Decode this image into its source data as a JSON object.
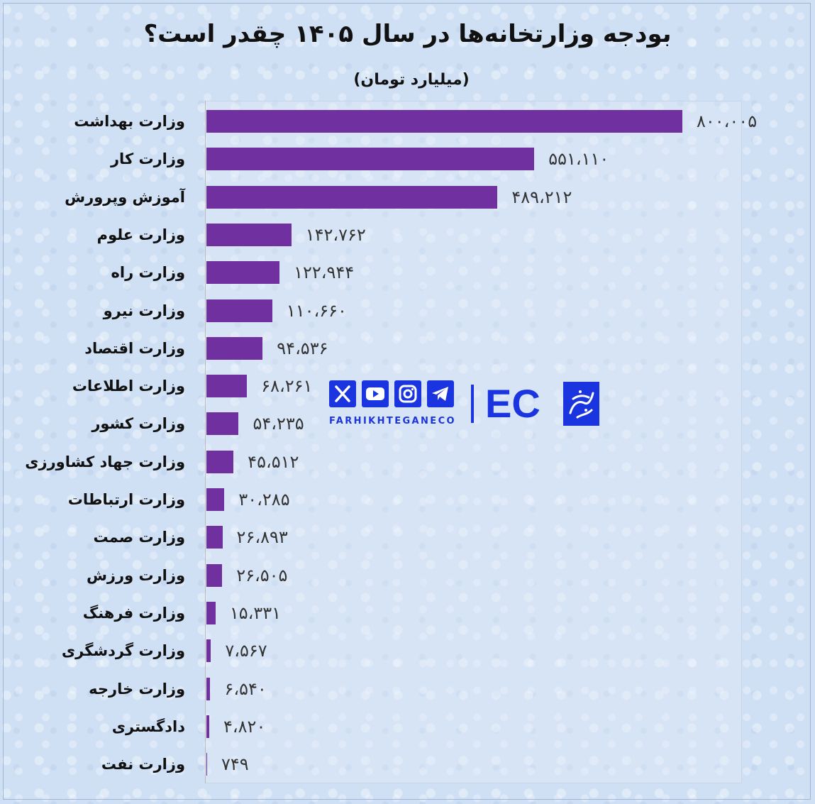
{
  "chart_data": {
    "type": "bar",
    "orientation": "horizontal",
    "title": "بودجه وزارتخانه‌ها در سال ۱۴۰۵ چقدر است؟",
    "subtitle": "(میلیارد تومان)",
    "categories": [
      "وزارت بهداشت",
      "وزارت کار",
      "آموزش وپرورش",
      "وزارت علوم",
      "وزارت راه",
      "وزارت نیرو",
      "وزارت اقتصاد",
      "وزارت اطلاعات",
      "وزارت کشور",
      "وزارت جهاد کشاورزی",
      "وزارت ارتباطات",
      "وزارت صمت",
      "وزارت ورزش",
      "وزارت فرهنگ",
      "وزارت گردشگری",
      "وزارت خارجه",
      "دادگستری",
      "وزارت نفت"
    ],
    "values": [
      800005,
      551110,
      489212,
      142762,
      122944,
      110660,
      94536,
      68261,
      54235,
      45512,
      30285,
      26893,
      26505,
      15331,
      7567,
      6540,
      4820,
      749
    ],
    "value_labels": [
      "۸۰۰،۰۰۵",
      "۵۵۱،۱۱۰",
      "۴۸۹،۲۱۲",
      "۱۴۲،۷۶۲",
      "۱۲۲،۹۴۴",
      "۱۱۰،۶۶۰",
      "۹۴،۵۳۶",
      "۶۸،۲۶۱",
      "۵۴،۲۳۵",
      "۴۵،۵۱۲",
      "۳۰،۲۸۵",
      "۲۶،۸۹۳",
      "۲۶،۵۰۵",
      "۱۵،۳۳۱",
      "۷،۵۶۷",
      "۶،۵۴۰",
      "۴،۸۲۰",
      "۷۴۹"
    ],
    "bar_color": "#7030a0",
    "grid": false,
    "legend": "none"
  },
  "watermark": {
    "brand": "FARHIKHTEGANECO",
    "logo_text": "EC",
    "color": "#1a35e0",
    "icons": [
      "x-icon",
      "youtube-icon",
      "instagram-icon",
      "telegram-icon"
    ]
  }
}
